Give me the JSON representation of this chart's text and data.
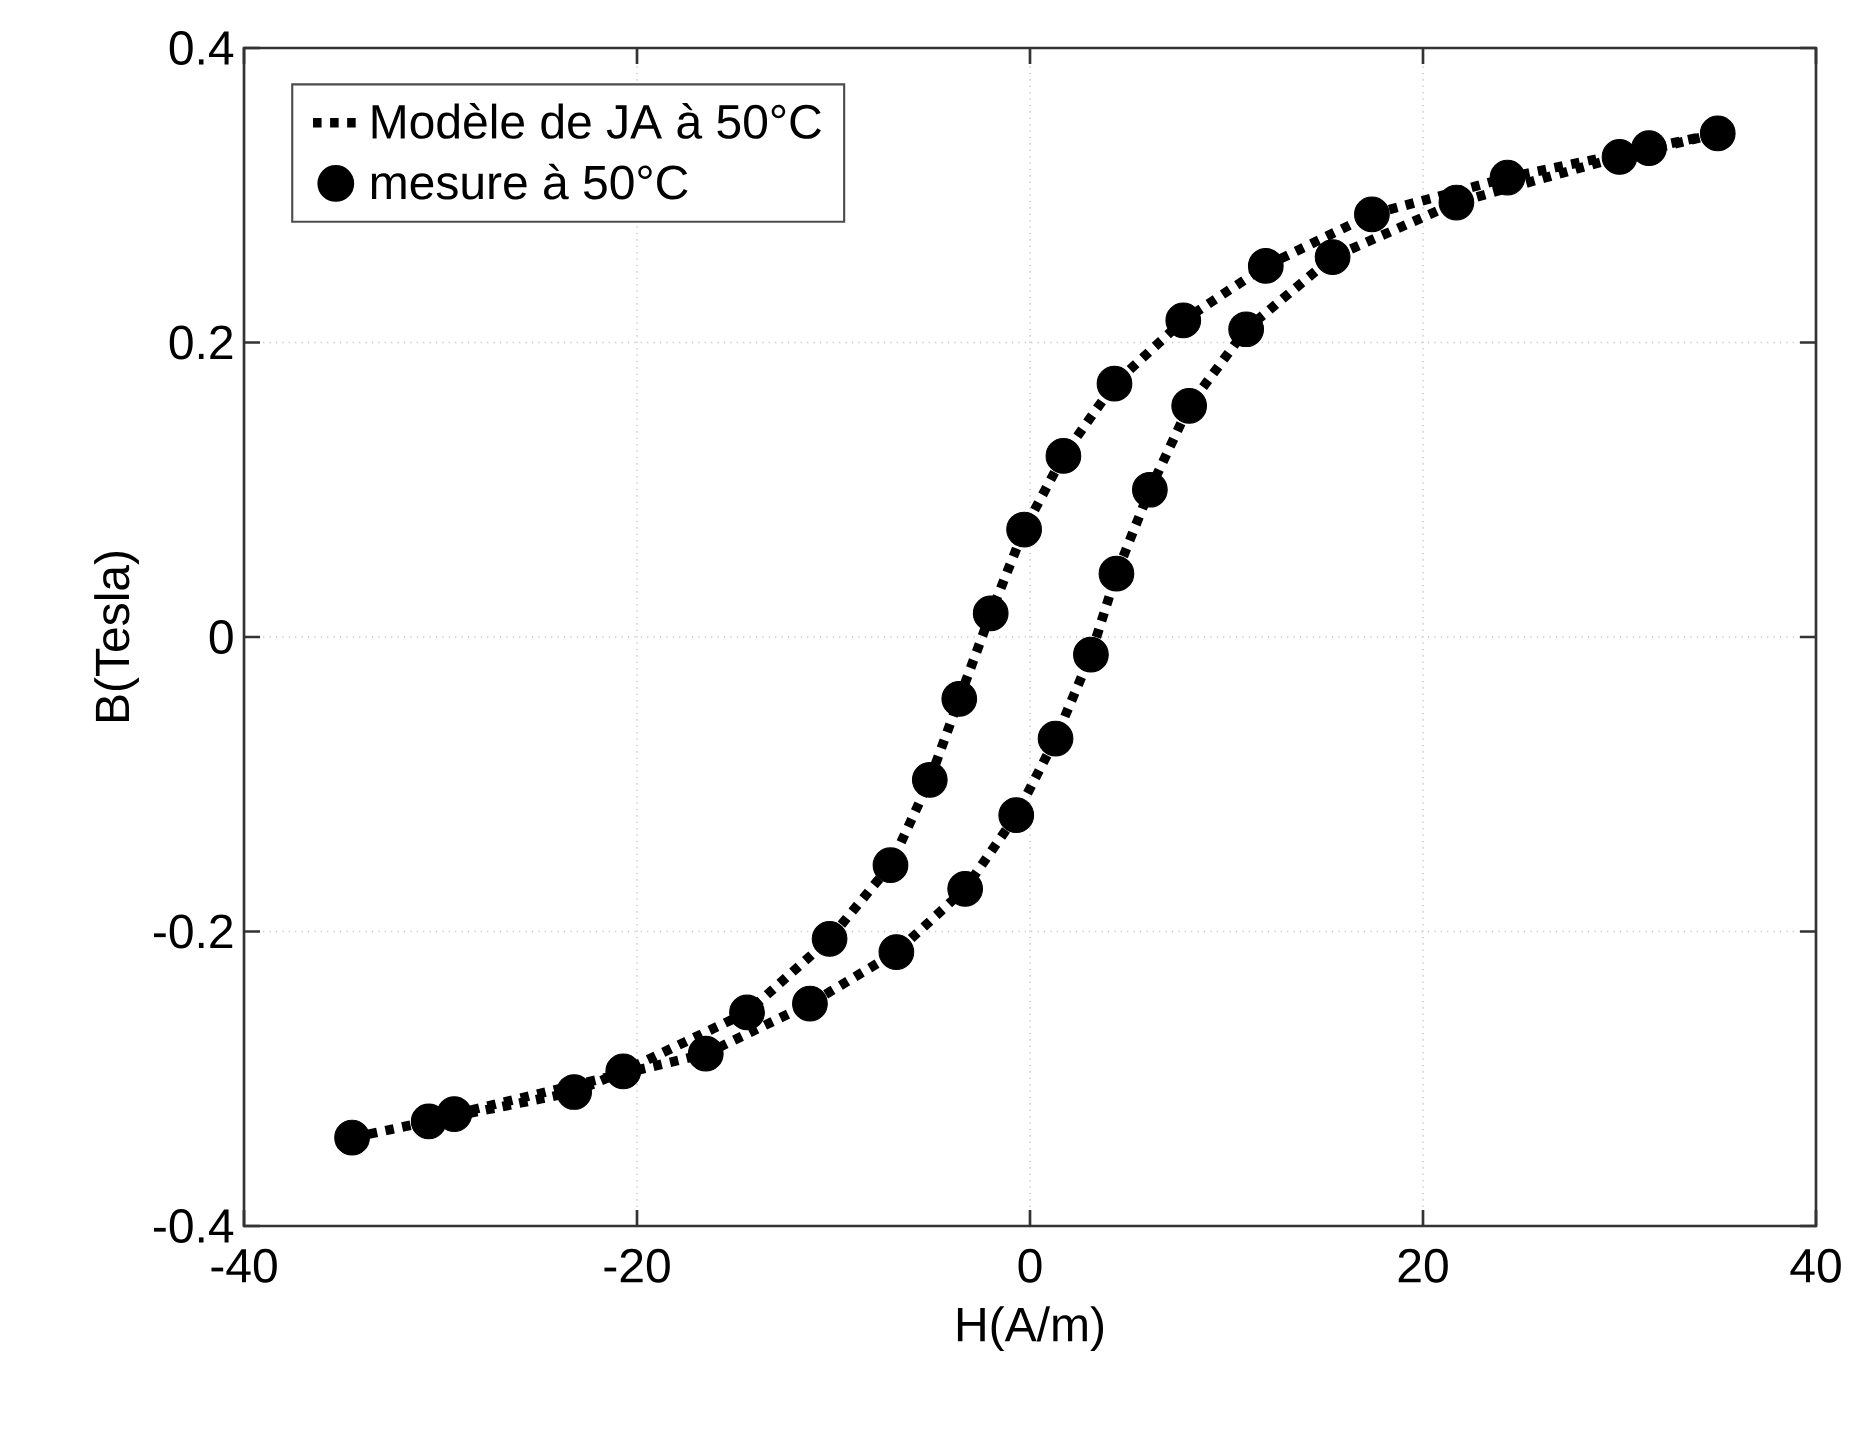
{
  "chart_data": {
    "type": "scatter",
    "xlabel": "H(A/m)",
    "ylabel": "B(Tesla)",
    "xlim": [
      -40,
      40
    ],
    "xticks": [
      -40,
      -20,
      0,
      20,
      40
    ],
    "ylim": [
      -0.4,
      0.4
    ],
    "yticks": [
      -0.4,
      -0.2,
      0,
      0.2,
      0.4
    ],
    "grid": true,
    "legend": "top left",
    "series": [
      {
        "name": "Modèle de JA à 50°C",
        "type": "line",
        "line_style": "dotted",
        "marker": "none",
        "color": "#000000",
        "x": [
          -34.5,
          -30.6,
          -23.2,
          -20.7,
          -14.4,
          -10.2,
          -7.1,
          -5.1,
          -3.6,
          -2,
          -0.3,
          1.7,
          4.3,
          7.8,
          12,
          17.4,
          24.3,
          31.5,
          35
        ],
        "values": [
          -0.34,
          -0.329,
          -0.309,
          -0.295,
          -0.255,
          -0.205,
          -0.155,
          -0.097,
          -0.042,
          0.016,
          0.073,
          0.123,
          0.172,
          0.215,
          0.252,
          0.287,
          0.312,
          0.332,
          0.342
        ]
      },
      {
        "type": "line",
        "line_style": "dotted",
        "marker": "none",
        "color": "#000000",
        "x": [
          -29.3,
          -16.5,
          -11.2,
          -6.8,
          -3.3,
          -0.7,
          1.3,
          3.1,
          4.4,
          6.1,
          8.1,
          11,
          15.4,
          21.7,
          30,
          35
        ],
        "values": [
          -0.324,
          -0.283,
          -0.249,
          -0.214,
          -0.171,
          -0.121,
          -0.069,
          -0.012,
          0.043,
          0.1,
          0.157,
          0.209,
          0.258,
          0.295,
          0.326,
          0.342
        ]
      },
      {
        "name": "mesure à 50°C",
        "type": "scatter",
        "marker": "circle",
        "color": "#000000",
        "x": [
          35,
          31.5,
          24.3,
          17.4,
          12,
          7.8,
          4.3,
          1.7,
          -0.3,
          -2,
          -3.6,
          -5.1,
          -7.1,
          -10.2,
          -14.4,
          -20.7,
          -23.2,
          -30.6,
          -34.5,
          -29.3,
          -16.5,
          -11.2,
          -6.8,
          -3.3,
          -0.7,
          1.3,
          3.1,
          4.4,
          6.1,
          8.1,
          11,
          15.4,
          21.7,
          30
        ],
        "values": [
          0.342,
          0.332,
          0.312,
          0.287,
          0.252,
          0.215,
          0.172,
          0.123,
          0.073,
          0.016,
          -0.042,
          -0.097,
          -0.155,
          -0.205,
          -0.255,
          -0.295,
          -0.309,
          -0.329,
          -0.34,
          -0.324,
          -0.283,
          -0.249,
          -0.214,
          -0.171,
          -0.121,
          -0.069,
          -0.012,
          0.043,
          0.1,
          0.157,
          0.209,
          0.258,
          0.295,
          0.326
        ]
      }
    ]
  }
}
